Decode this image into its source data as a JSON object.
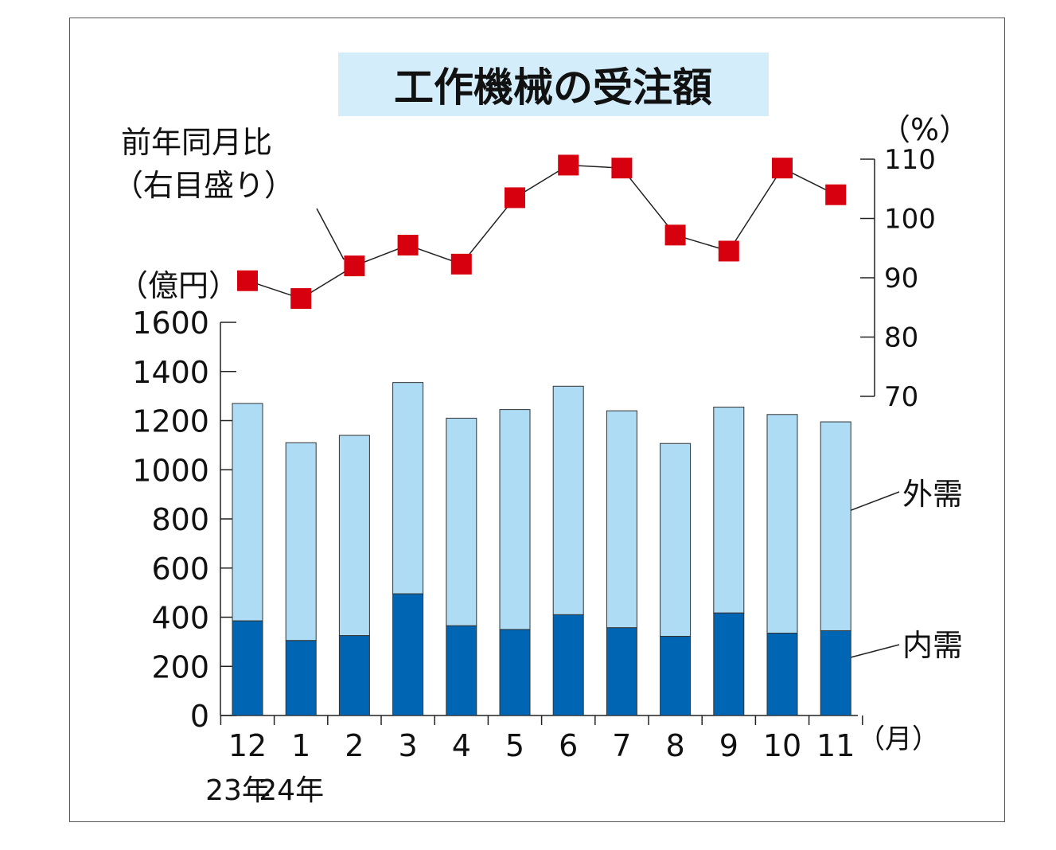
{
  "chart_data": {
    "type": "bar",
    "title": "工作機械の受注額",
    "categories": [
      "12",
      "1",
      "2",
      "3",
      "4",
      "5",
      "6",
      "7",
      "8",
      "9",
      "10",
      "11"
    ],
    "x_unit": "（月）",
    "year_labels": [
      {
        "category_index": 0,
        "label": "23年"
      },
      {
        "category_index": 1,
        "label": "24年"
      }
    ],
    "y_unit": "（億円）",
    "ylim": [
      0,
      1600
    ],
    "y_ticks": [
      0,
      200,
      400,
      600,
      800,
      1000,
      1200,
      1400,
      1600
    ],
    "series": [
      {
        "name": "内需",
        "stack": "total",
        "color": "#0066b3",
        "values": [
          385,
          305,
          325,
          495,
          365,
          350,
          410,
          357,
          322,
          417,
          335,
          345
        ]
      },
      {
        "name": "外需",
        "stack": "total",
        "color": "#aedcf5",
        "values": [
          885,
          805,
          815,
          860,
          845,
          895,
          930,
          883,
          785,
          838,
          890,
          850
        ]
      }
    ],
    "line_series": {
      "label_line1": "前年同月比",
      "label_line2": "（右目盛り）",
      "y_unit": "（%）",
      "ylim": [
        70,
        110
      ],
      "y_ticks": [
        70,
        80,
        90,
        100,
        110
      ],
      "marker_color": "#d7000f",
      "values": [
        89.5,
        86.5,
        92,
        95.5,
        92.3,
        103.5,
        109,
        108.5,
        97.2,
        94.5,
        108.5,
        104
      ]
    }
  }
}
